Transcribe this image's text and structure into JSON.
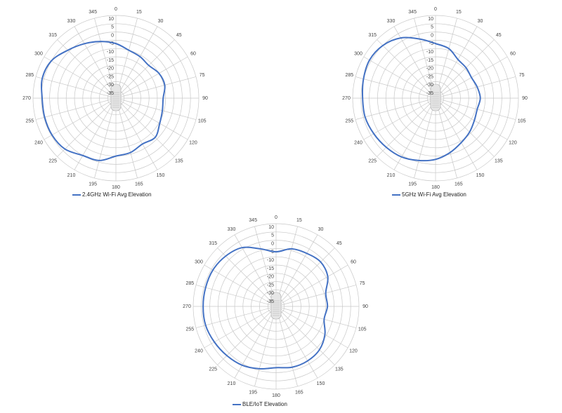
{
  "chart_data": [
    {
      "type": "polar",
      "theta": [
        0,
        15,
        30,
        45,
        60,
        75,
        90,
        105,
        120,
        135,
        150,
        165,
        180,
        195,
        210,
        225,
        240,
        255,
        270,
        285,
        300,
        315,
        330,
        345
      ],
      "rlim": [
        -40,
        10
      ],
      "rticks": [
        -35,
        -30,
        -25,
        -20,
        -15,
        -10,
        -5,
        0,
        5,
        10
      ],
      "grid": true,
      "legend": "bottom",
      "series": [
        {
          "name": "2.4GHz Wi-Fi Avg Elevation",
          "color": "#4472c4",
          "values": [
            -7,
            -10,
            -11,
            -12,
            -10,
            -9.5,
            -11.5,
            -11,
            -9.5,
            -6.5,
            -8,
            -6,
            -5,
            -1,
            0,
            3.5,
            4.5,
            4.5,
            4.5,
            6,
            5,
            1,
            -2,
            -4.5
          ]
        }
      ]
    },
    {
      "type": "polar",
      "theta": [
        0,
        15,
        30,
        45,
        60,
        75,
        90,
        105,
        120,
        135,
        150,
        165,
        180,
        195,
        210,
        225,
        240,
        255,
        270,
        285,
        300,
        315,
        330,
        345
      ],
      "rlim": [
        -40,
        10
      ],
      "rticks": [
        -35,
        -30,
        -25,
        -20,
        -15,
        -10,
        -5,
        0,
        5,
        10
      ],
      "grid": true,
      "legend": "bottom",
      "series": [
        {
          "name": "5GHz Wi-Fi Avg Elevation",
          "color": "#4472c4",
          "values": [
            -7,
            -9,
            -13,
            -14,
            -15,
            -14,
            -13,
            -14,
            -13,
            -11,
            -9,
            -6,
            -3,
            -1,
            1,
            2,
            3,
            4,
            4,
            5,
            6,
            5,
            2,
            -3
          ]
        }
      ]
    },
    {
      "type": "polar",
      "theta": [
        0,
        15,
        30,
        45,
        60,
        75,
        90,
        105,
        120,
        135,
        150,
        165,
        180,
        195,
        210,
        225,
        240,
        255,
        270,
        285,
        300,
        315,
        330,
        345
      ],
      "rlim": [
        -40,
        10
      ],
      "rticks": [
        -35,
        -30,
        -25,
        -20,
        -15,
        -10,
        -5,
        0,
        5,
        10
      ],
      "grid": true,
      "legend": "bottom",
      "series": [
        {
          "name": "BLE/IoT Elevation",
          "color": "#4472c4",
          "values": [
            -7,
            -4,
            -3,
            -2,
            -4,
            -9,
            -9,
            -10,
            -6,
            -3,
            -2,
            -2,
            -3,
            -1,
            1,
            2,
            3,
            4,
            4,
            4,
            4,
            3,
            1,
            -4
          ]
        }
      ]
    }
  ]
}
